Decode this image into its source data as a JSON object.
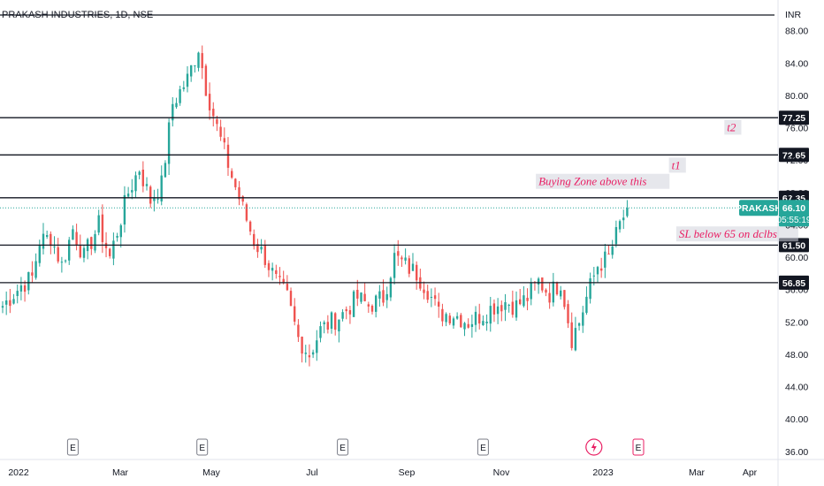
{
  "symbol_title": "PRAKASH INDUSTRIES, 1D, NSE",
  "currency": "INR",
  "colors": {
    "up": "#26a69a",
    "down": "#ef5350",
    "level_line": "#131722",
    "annotation_text": "#e91e63",
    "annotation_bg": "#d1d4dc",
    "price_badge": "#26a69a",
    "event_icon": "#787b86",
    "dividend_icon": "#e91e63"
  },
  "chart_data": {
    "type": "candlestick",
    "x_ticks": [
      "2022",
      "Mar",
      "May",
      "Jul",
      "Sep",
      "Nov",
      "2023",
      "Mar",
      "Apr"
    ],
    "y_ticks": [
      36.0,
      40.0,
      44.0,
      48.0,
      52.0,
      56.0,
      60.0,
      64.0,
      68.0,
      72.0,
      76.0,
      80.0,
      84.0,
      88.0
    ],
    "y_range": [
      35,
      89.5
    ],
    "price_path": [
      [
        0,
        54
      ],
      [
        5,
        56.5
      ],
      [
        8,
        57.5
      ],
      [
        10,
        62
      ],
      [
        13,
        62.5
      ],
      [
        16,
        59
      ],
      [
        19,
        63.5
      ],
      [
        22,
        60
      ],
      [
        26,
        64
      ],
      [
        29,
        60
      ],
      [
        34,
        68
      ],
      [
        37,
        71
      ],
      [
        40,
        67
      ],
      [
        43,
        69
      ],
      [
        46,
        79
      ],
      [
        50,
        82
      ],
      [
        53,
        86
      ],
      [
        55,
        81
      ],
      [
        58,
        76
      ],
      [
        62,
        70
      ],
      [
        65,
        66
      ],
      [
        68,
        62
      ],
      [
        71,
        60
      ],
      [
        74,
        57
      ],
      [
        77,
        55
      ],
      [
        80,
        50
      ],
      [
        83,
        48
      ],
      [
        86,
        51
      ],
      [
        89,
        52
      ],
      [
        92,
        53
      ],
      [
        96,
        55
      ],
      [
        99,
        54
      ],
      [
        103,
        55
      ],
      [
        106,
        60
      ],
      [
        109,
        59
      ],
      [
        112,
        58
      ],
      [
        115,
        56
      ],
      [
        118,
        53
      ],
      [
        122,
        53
      ],
      [
        126,
        52
      ],
      [
        130,
        53
      ],
      [
        133,
        54
      ],
      [
        136,
        54.5
      ],
      [
        139,
        54
      ],
      [
        142,
        55
      ],
      [
        145,
        57
      ],
      [
        148,
        55.5
      ],
      [
        151,
        57
      ],
      [
        154,
        50
      ],
      [
        156,
        52
      ],
      [
        158,
        55
      ],
      [
        161,
        59
      ],
      [
        164,
        60
      ],
      [
        167,
        64
      ],
      [
        169,
        66
      ]
    ],
    "last_price": 66.1,
    "levels": [
      {
        "label": "77.25",
        "value": 77.25
      },
      {
        "label": "72.65",
        "value": 72.65
      },
      {
        "label": "67.35",
        "value": 67.35
      },
      {
        "label": "61.50",
        "value": 61.5
      },
      {
        "label": "56.85",
        "value": 56.85
      }
    ],
    "annotations": [
      {
        "text": "t2",
        "price": 75.7,
        "bar": 196
      },
      {
        "text": "t1",
        "price": 71.0,
        "bar": 181
      },
      {
        "text": "Buying Zone above this",
        "price": 69.0,
        "bar": 145
      },
      {
        "text": "SL below 65 on dclbs",
        "price": 62.5,
        "bar": 183
      }
    ],
    "last_badge": {
      "symbol": "PRAKASH",
      "price": "66.10",
      "countdown": "05:55:19"
    },
    "events": [
      {
        "bar": 19,
        "icon": "E"
      },
      {
        "bar": 54,
        "icon": "E"
      },
      {
        "bar": 92,
        "icon": "E"
      },
      {
        "bar": 130,
        "icon": "E"
      },
      {
        "bar": 160,
        "icon": "dividend"
      },
      {
        "bar": 172,
        "icon": "E"
      }
    ]
  }
}
